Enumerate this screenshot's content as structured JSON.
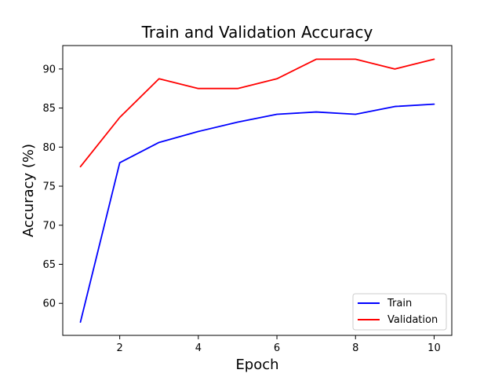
{
  "chart_data": {
    "type": "line",
    "title": "Train and Validation Accuracy",
    "xlabel": "Epoch",
    "ylabel": "Accuracy (%)",
    "x": [
      1,
      2,
      3,
      4,
      5,
      6,
      7,
      8,
      9,
      10
    ],
    "xlim": [
      0.55,
      10.45
    ],
    "ylim": [
      55.9,
      93.0
    ],
    "xticks": [
      2,
      4,
      6,
      8,
      10
    ],
    "yticks": [
      60,
      65,
      70,
      75,
      80,
      85,
      90
    ],
    "grid": false,
    "legend_position": "lower-right",
    "series": [
      {
        "name": "Train",
        "color": "#0000ff",
        "values": [
          57.6,
          78.0,
          80.6,
          82.0,
          83.2,
          84.2,
          84.5,
          84.2,
          85.2,
          85.5
        ]
      },
      {
        "name": "Validation",
        "color": "#ff0000",
        "values": [
          77.5,
          83.8,
          88.75,
          87.5,
          87.5,
          88.75,
          91.25,
          91.25,
          90.0,
          91.25
        ]
      }
    ]
  }
}
